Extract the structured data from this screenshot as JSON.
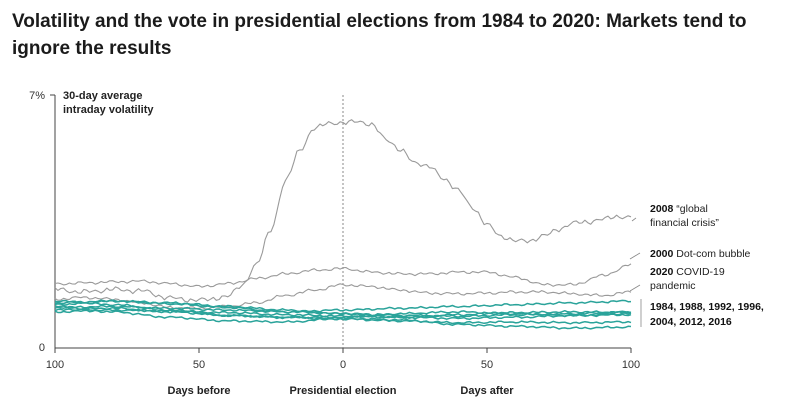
{
  "page": {
    "title": "Volatility and the vote in presidential elections from 1984 to 2020: Markets tend to ignore the results"
  },
  "chart_data": {
    "type": "line",
    "title": "Volatility and the vote in presidential elections from 1984 to 2020: Markets tend to ignore the results",
    "ylabel_line1": "30-day average",
    "ylabel_line2": "intraday volatility",
    "ylim": [
      0,
      7
    ],
    "y_ticks": [
      {
        "value": 0,
        "label": "0"
      },
      {
        "value": 7,
        "label": "7%"
      }
    ],
    "xlim": [
      -100,
      100
    ],
    "x_ticks": [
      {
        "value": -100,
        "label": "100"
      },
      {
        "value": -50,
        "label": "50"
      },
      {
        "value": 0,
        "label": "0"
      },
      {
        "value": 50,
        "label": "50"
      },
      {
        "value": 100,
        "label": "100"
      }
    ],
    "x_sections": [
      {
        "value": -50,
        "label": "Days before"
      },
      {
        "value": 0,
        "label": "Presidential election"
      },
      {
        "value": 50,
        "label": "Days after"
      }
    ],
    "colors": {
      "gray": "#9a9a9a",
      "teal": "#2aa39a",
      "vline": "#888888"
    },
    "series": [
      {
        "name": "2008",
        "group": "gray",
        "points": [
          [
            -100,
            1.62
          ],
          [
            -90,
            1.55
          ],
          [
            -80,
            1.62
          ],
          [
            -70,
            1.58
          ],
          [
            -60,
            1.38
          ],
          [
            -50,
            1.32
          ],
          [
            -40,
            1.42
          ],
          [
            -35,
            1.75
          ],
          [
            -30,
            2.3
          ],
          [
            -25,
            3.3
          ],
          [
            -20,
            4.6
          ],
          [
            -15,
            5.5
          ],
          [
            -10,
            6.05
          ],
          [
            -5,
            6.25
          ],
          [
            0,
            6.2
          ],
          [
            5,
            6.3
          ],
          [
            10,
            6.15
          ],
          [
            15,
            5.8
          ],
          [
            20,
            5.45
          ],
          [
            25,
            5.15
          ],
          [
            30,
            5.0
          ],
          [
            35,
            4.7
          ],
          [
            40,
            4.35
          ],
          [
            45,
            3.9
          ],
          [
            50,
            3.4
          ],
          [
            55,
            3.1
          ],
          [
            60,
            2.95
          ],
          [
            65,
            2.98
          ],
          [
            70,
            3.1
          ],
          [
            75,
            3.3
          ],
          [
            80,
            3.45
          ],
          [
            85,
            3.5
          ],
          [
            90,
            3.55
          ],
          [
            95,
            3.65
          ],
          [
            100,
            3.6
          ]
        ]
      },
      {
        "name": "2000",
        "group": "gray",
        "points": [
          [
            -100,
            1.77
          ],
          [
            -90,
            1.8
          ],
          [
            -80,
            1.83
          ],
          [
            -70,
            1.85
          ],
          [
            -60,
            1.78
          ],
          [
            -50,
            1.7
          ],
          [
            -40,
            1.78
          ],
          [
            -30,
            1.92
          ],
          [
            -20,
            2.05
          ],
          [
            -10,
            2.15
          ],
          [
            0,
            2.2
          ],
          [
            10,
            2.1
          ],
          [
            20,
            2.05
          ],
          [
            30,
            2.05
          ],
          [
            40,
            2.1
          ],
          [
            50,
            2.1
          ],
          [
            60,
            1.95
          ],
          [
            70,
            1.75
          ],
          [
            80,
            1.75
          ],
          [
            90,
            2.0
          ],
          [
            100,
            2.3
          ]
        ]
      },
      {
        "name": "2020",
        "group": "gray",
        "points": [
          [
            -100,
            1.35
          ],
          [
            -90,
            1.4
          ],
          [
            -80,
            1.35
          ],
          [
            -70,
            1.25
          ],
          [
            -60,
            1.12
          ],
          [
            -50,
            1.1
          ],
          [
            -40,
            1.15
          ],
          [
            -30,
            1.25
          ],
          [
            -20,
            1.45
          ],
          [
            -10,
            1.6
          ],
          [
            0,
            1.75
          ],
          [
            10,
            1.7
          ],
          [
            20,
            1.6
          ],
          [
            30,
            1.52
          ],
          [
            40,
            1.5
          ],
          [
            50,
            1.52
          ],
          [
            60,
            1.55
          ],
          [
            70,
            1.55
          ],
          [
            80,
            1.5
          ],
          [
            90,
            1.45
          ],
          [
            100,
            1.55
          ]
        ]
      },
      {
        "name": "1984",
        "group": "teal",
        "points": [
          [
            -100,
            1.25
          ],
          [
            -80,
            1.3
          ],
          [
            -60,
            1.22
          ],
          [
            -40,
            1.12
          ],
          [
            -20,
            1.0
          ],
          [
            0,
            0.95
          ],
          [
            20,
            0.9
          ],
          [
            40,
            0.88
          ],
          [
            60,
            0.92
          ],
          [
            80,
            0.95
          ],
          [
            100,
            1.0
          ]
        ]
      },
      {
        "name": "1988",
        "group": "teal",
        "points": [
          [
            -100,
            1.3
          ],
          [
            -80,
            1.2
          ],
          [
            -60,
            1.05
          ],
          [
            -40,
            0.9
          ],
          [
            -20,
            0.85
          ],
          [
            0,
            0.8
          ],
          [
            20,
            0.75
          ],
          [
            40,
            0.7
          ],
          [
            60,
            0.72
          ],
          [
            80,
            0.7
          ],
          [
            100,
            0.72
          ]
        ]
      },
      {
        "name": "1992",
        "group": "teal",
        "points": [
          [
            -100,
            1.05
          ],
          [
            -80,
            1.1
          ],
          [
            -60,
            1.0
          ],
          [
            -40,
            0.9
          ],
          [
            -20,
            0.85
          ],
          [
            0,
            0.85
          ],
          [
            20,
            0.95
          ],
          [
            40,
            1.0
          ],
          [
            60,
            0.95
          ],
          [
            80,
            0.9
          ],
          [
            100,
            0.92
          ]
        ]
      },
      {
        "name": "1996",
        "group": "teal",
        "points": [
          [
            -100,
            1.15
          ],
          [
            -80,
            1.0
          ],
          [
            -60,
            0.85
          ],
          [
            -40,
            0.75
          ],
          [
            -20,
            0.72
          ],
          [
            0,
            0.82
          ],
          [
            20,
            0.78
          ],
          [
            40,
            0.65
          ],
          [
            60,
            0.6
          ],
          [
            80,
            0.55
          ],
          [
            100,
            0.58
          ]
        ]
      },
      {
        "name": "2004",
        "group": "teal",
        "points": [
          [
            -100,
            1.2
          ],
          [
            -80,
            1.3
          ],
          [
            -60,
            1.25
          ],
          [
            -40,
            1.15
          ],
          [
            -20,
            1.05
          ],
          [
            0,
            0.95
          ],
          [
            20,
            0.85
          ],
          [
            40,
            0.82
          ],
          [
            60,
            0.85
          ],
          [
            80,
            0.9
          ],
          [
            100,
            0.95
          ]
        ]
      },
      {
        "name": "2012",
        "group": "teal",
        "points": [
          [
            -100,
            1.0
          ],
          [
            -80,
            1.05
          ],
          [
            -60,
            1.02
          ],
          [
            -40,
            0.98
          ],
          [
            -20,
            0.92
          ],
          [
            0,
            0.88
          ],
          [
            20,
            0.85
          ],
          [
            40,
            0.92
          ],
          [
            60,
            0.98
          ],
          [
            80,
            1.0
          ],
          [
            100,
            0.98
          ]
        ]
      },
      {
        "name": "2016",
        "group": "teal",
        "points": [
          [
            -100,
            1.12
          ],
          [
            -80,
            1.15
          ],
          [
            -60,
            1.1
          ],
          [
            -40,
            1.05
          ],
          [
            -20,
            1.0
          ],
          [
            0,
            1.05
          ],
          [
            20,
            1.1
          ],
          [
            40,
            1.15
          ],
          [
            60,
            1.2
          ],
          [
            80,
            1.25
          ],
          [
            100,
            1.3
          ]
        ]
      }
    ],
    "annotations": {
      "a2008_year": "2008",
      "a2008_text1": "“global",
      "a2008_text2": "financial crisis”",
      "a2000_year": "2000",
      "a2000_text": "Dot-com bubble",
      "a2020_year": "2020",
      "a2020_text1": "COVID-19",
      "a2020_text2": "pandemic",
      "teal_line1": "1984, 1988, 1992, 1996,",
      "teal_line2": "2004, 2012, 2016"
    }
  }
}
